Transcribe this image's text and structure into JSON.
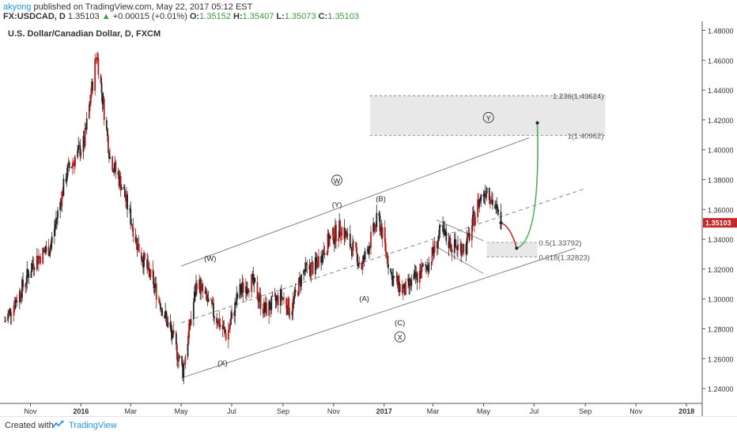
{
  "header": {
    "user": "akyong",
    "published": "published on TradingView.com, May 22, 2017 05:12 EST",
    "symbol": "FX:USDCAD, D",
    "price": "1.35103",
    "change": "+0.00015 (+0.01%)",
    "o_label": "O:",
    "o": "1.35152",
    "h_label": "H:",
    "h": "1.35407",
    "l_label": "L:",
    "l": "1.35073",
    "c_label": "C:",
    "c": "1.35103"
  },
  "chart_title": "U.S. Dollar/Canadian Dollar, D, FXCM",
  "footer": {
    "created": "Created with",
    "brand": "TradingView"
  },
  "colors": {
    "candle": "#222222",
    "candle_red": "#b71c1c",
    "projection_green": "#4caf50",
    "projection_red": "#c62828",
    "price_tag": "#c62828",
    "zone": "#e8e8e8"
  },
  "chart_data": {
    "type": "candlestick",
    "title": "U.S. Dollar/Canadian Dollar, D, FXCM",
    "last_price_label": "1.35103",
    "ylim": [
      1.23,
      1.485
    ],
    "y_ticks": [
      "1.48000",
      "1.46000",
      "1.44000",
      "1.42000",
      "1.40000",
      "1.38000",
      "1.36000",
      "1.34000",
      "1.32000",
      "1.30000",
      "1.28000",
      "1.26000",
      "1.24000"
    ],
    "x_ticks": [
      "Nov",
      "2016",
      "Mar",
      "May",
      "Jul",
      "Sep",
      "Nov",
      "2017",
      "Mar",
      "May",
      "Jul",
      "Sep",
      "Nov",
      "2018"
    ],
    "x_tick_dates": [
      "2015-11-01",
      "2016-01-01",
      "2016-03-01",
      "2016-05-01",
      "2016-07-01",
      "2016-09-01",
      "2016-11-01",
      "2017-01-01",
      "2017-03-01",
      "2017-05-01",
      "2017-07-01",
      "2017-09-01",
      "2017-11-01",
      "2018-01-01"
    ],
    "price_path": [
      [
        "2015-10-01",
        1.285
      ],
      [
        "2015-10-20",
        1.305
      ],
      [
        "2015-11-05",
        1.325
      ],
      [
        "2015-11-25",
        1.335
      ],
      [
        "2015-12-15",
        1.385
      ],
      [
        "2016-01-05",
        1.405
      ],
      [
        "2016-01-20",
        1.465
      ],
      [
        "2016-02-05",
        1.395
      ],
      [
        "2016-02-20",
        1.375
      ],
      [
        "2016-03-10",
        1.335
      ],
      [
        "2016-04-01",
        1.305
      ],
      [
        "2016-04-20",
        1.275
      ],
      [
        "2016-05-03",
        1.252
      ],
      [
        "2016-05-20",
        1.312
      ],
      [
        "2016-06-05",
        1.295
      ],
      [
        "2016-06-25",
        1.275
      ],
      [
        "2016-07-10",
        1.305
      ],
      [
        "2016-07-25",
        1.312
      ],
      [
        "2016-08-10",
        1.292
      ],
      [
        "2016-08-30",
        1.302
      ],
      [
        "2016-09-10",
        1.292
      ],
      [
        "2016-09-25",
        1.318
      ],
      [
        "2016-10-10",
        1.322
      ],
      [
        "2016-10-25",
        1.338
      ],
      [
        "2016-11-10",
        1.348
      ],
      [
        "2016-12-05",
        1.322
      ],
      [
        "2016-12-25",
        1.355
      ],
      [
        "2017-01-10",
        1.315
      ],
      [
        "2017-01-25",
        1.305
      ],
      [
        "2017-02-10",
        1.315
      ],
      [
        "2017-02-25",
        1.325
      ],
      [
        "2017-03-10",
        1.345
      ],
      [
        "2017-03-25",
        1.335
      ],
      [
        "2017-04-10",
        1.335
      ],
      [
        "2017-04-25",
        1.365
      ],
      [
        "2017-05-05",
        1.375
      ],
      [
        "2017-05-22",
        1.351
      ]
    ],
    "annotations": [
      {
        "text": "(W)",
        "date": "2016-06-05",
        "price": 1.326
      },
      {
        "text": "W",
        "date": "2016-11-05",
        "price": 1.378,
        "circled": true
      },
      {
        "text": "(Y)",
        "date": "2016-11-05",
        "price": 1.362
      },
      {
        "text": "(B)",
        "date": "2016-12-28",
        "price": 1.366
      },
      {
        "text": "(A)",
        "date": "2016-12-08",
        "price": 1.299
      },
      {
        "text": "(C)",
        "date": "2017-01-20",
        "price": 1.283
      },
      {
        "text": "X",
        "date": "2017-01-20",
        "price": 1.273,
        "circled": true
      },
      {
        "text": "(X)",
        "date": "2016-06-20",
        "price": 1.256
      },
      {
        "text": "Y",
        "date": "2017-05-07",
        "price": 1.42,
        "circled": true
      }
    ],
    "fib_levels": [
      {
        "label": "1.236(1.43624)",
        "value": 1.43624
      },
      {
        "label": "1(1.40962)",
        "value": 1.40962
      },
      {
        "label": "0.5(1.33792)",
        "value": 1.33792
      },
      {
        "label": "0.618(1.32823)",
        "value": 1.32823
      }
    ],
    "trend_channel": {
      "upper": [
        [
          "2016-05-01",
          1.322
        ],
        [
          "2017-06-25",
          1.408
        ]
      ],
      "lower": [
        [
          "2016-05-01",
          1.247
        ],
        [
          "2017-08-20",
          1.334
        ]
      ],
      "mid": [
        [
          "2016-05-01",
          1.284
        ],
        [
          "2017-09-01",
          1.374
        ]
      ]
    },
    "projection": [
      [
        "2017-05-22",
        1.351
      ],
      [
        "2017-06-10",
        1.334
      ],
      [
        "2017-07-05",
        1.418
      ]
    ]
  }
}
